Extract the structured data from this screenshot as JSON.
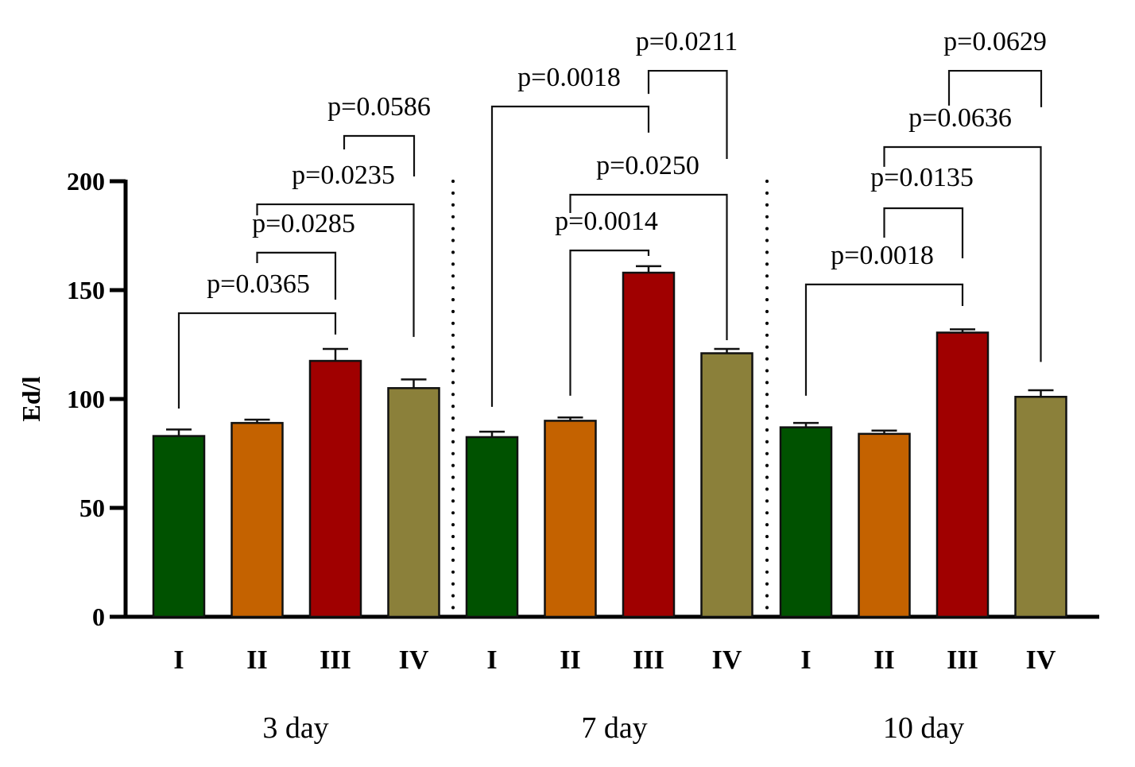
{
  "chart_data": {
    "type": "bar",
    "title": "",
    "xlabel": "",
    "ylabel": "Ed/l",
    "ylim": [
      0,
      200
    ],
    "yticks": [
      "0",
      "50",
      "100",
      "150",
      "200"
    ],
    "grid": false,
    "legend": "none",
    "groups": [
      "3 day",
      "7 day",
      "10 day"
    ],
    "categories": [
      "I",
      "II",
      "III",
      "IV"
    ],
    "colors": [
      "#005200",
      "#c46200",
      "#a00000",
      "#8b803a"
    ],
    "series": [
      {
        "name": "3 day",
        "values": [
          83,
          89,
          117.5,
          105
        ],
        "error": [
          3,
          1.5,
          5.5,
          4
        ]
      },
      {
        "name": "7 day",
        "values": [
          82.5,
          90,
          158,
          121
        ],
        "error": [
          2.5,
          1.5,
          3,
          2
        ]
      },
      {
        "name": "10 day",
        "values": [
          87,
          84,
          130.5,
          101
        ],
        "error": [
          2,
          1.5,
          1.5,
          3
        ]
      }
    ],
    "comparisons": [
      {
        "group": 0,
        "from": 0,
        "to": 2,
        "label": "p=0.0365",
        "level": 139.4,
        "leftEnd": 95.6,
        "rightEnd": 129.6
      },
      {
        "group": 0,
        "from": 1,
        "to": 2,
        "label": "p=0.0285",
        "level": 167.2,
        "leftEnd": 162.4,
        "rightEnd": 145.6
      },
      {
        "group": 0,
        "from": 1,
        "to": 3,
        "label": "p=0.0235",
        "level": 189.4,
        "leftEnd": 184.3,
        "rightEnd": 128.5
      },
      {
        "group": 0,
        "from": 2,
        "to": 3,
        "label": "p=0.0586",
        "level": 220.8,
        "leftEnd": 214.6,
        "rightEnd": 202.2
      },
      {
        "group": 1,
        "from": 1,
        "to": 2,
        "label": "p=0.0014",
        "level": 168.2,
        "leftEnd": 101.5,
        "rightEnd": 165.7
      },
      {
        "group": 1,
        "from": 1,
        "to": 3,
        "label": "p=0.0250",
        "level": 193.8,
        "leftEnd": 185.4,
        "rightEnd": 127.0
      },
      {
        "group": 1,
        "from": 0,
        "to": 2,
        "label": "p=0.0018",
        "level": 234.3,
        "leftEnd": 96.4,
        "rightEnd": 222.3
      },
      {
        "group": 1,
        "from": 2,
        "to": 3,
        "label": "p=0.0211",
        "level": 250.7,
        "leftEnd": 240.1,
        "rightEnd": 210.2
      },
      {
        "group": 2,
        "from": 0,
        "to": 2,
        "label": "p=0.0018",
        "level": 152.6,
        "leftEnd": 101.5,
        "rightEnd": 142.7
      },
      {
        "group": 2,
        "from": 1,
        "to": 2,
        "label": "p=0.0135",
        "level": 187.6,
        "leftEnd": 174.1,
        "rightEnd": 164.6
      },
      {
        "group": 2,
        "from": 1,
        "to": 3,
        "label": "p=0.0636",
        "level": 215.7,
        "leftEnd": 206.6,
        "rightEnd": 117.0
      },
      {
        "group": 2,
        "from": 2,
        "to": 3,
        "label": "p=0.0629",
        "level": 250.7,
        "leftEnd": 234.7,
        "rightEnd": 234.0
      }
    ]
  }
}
